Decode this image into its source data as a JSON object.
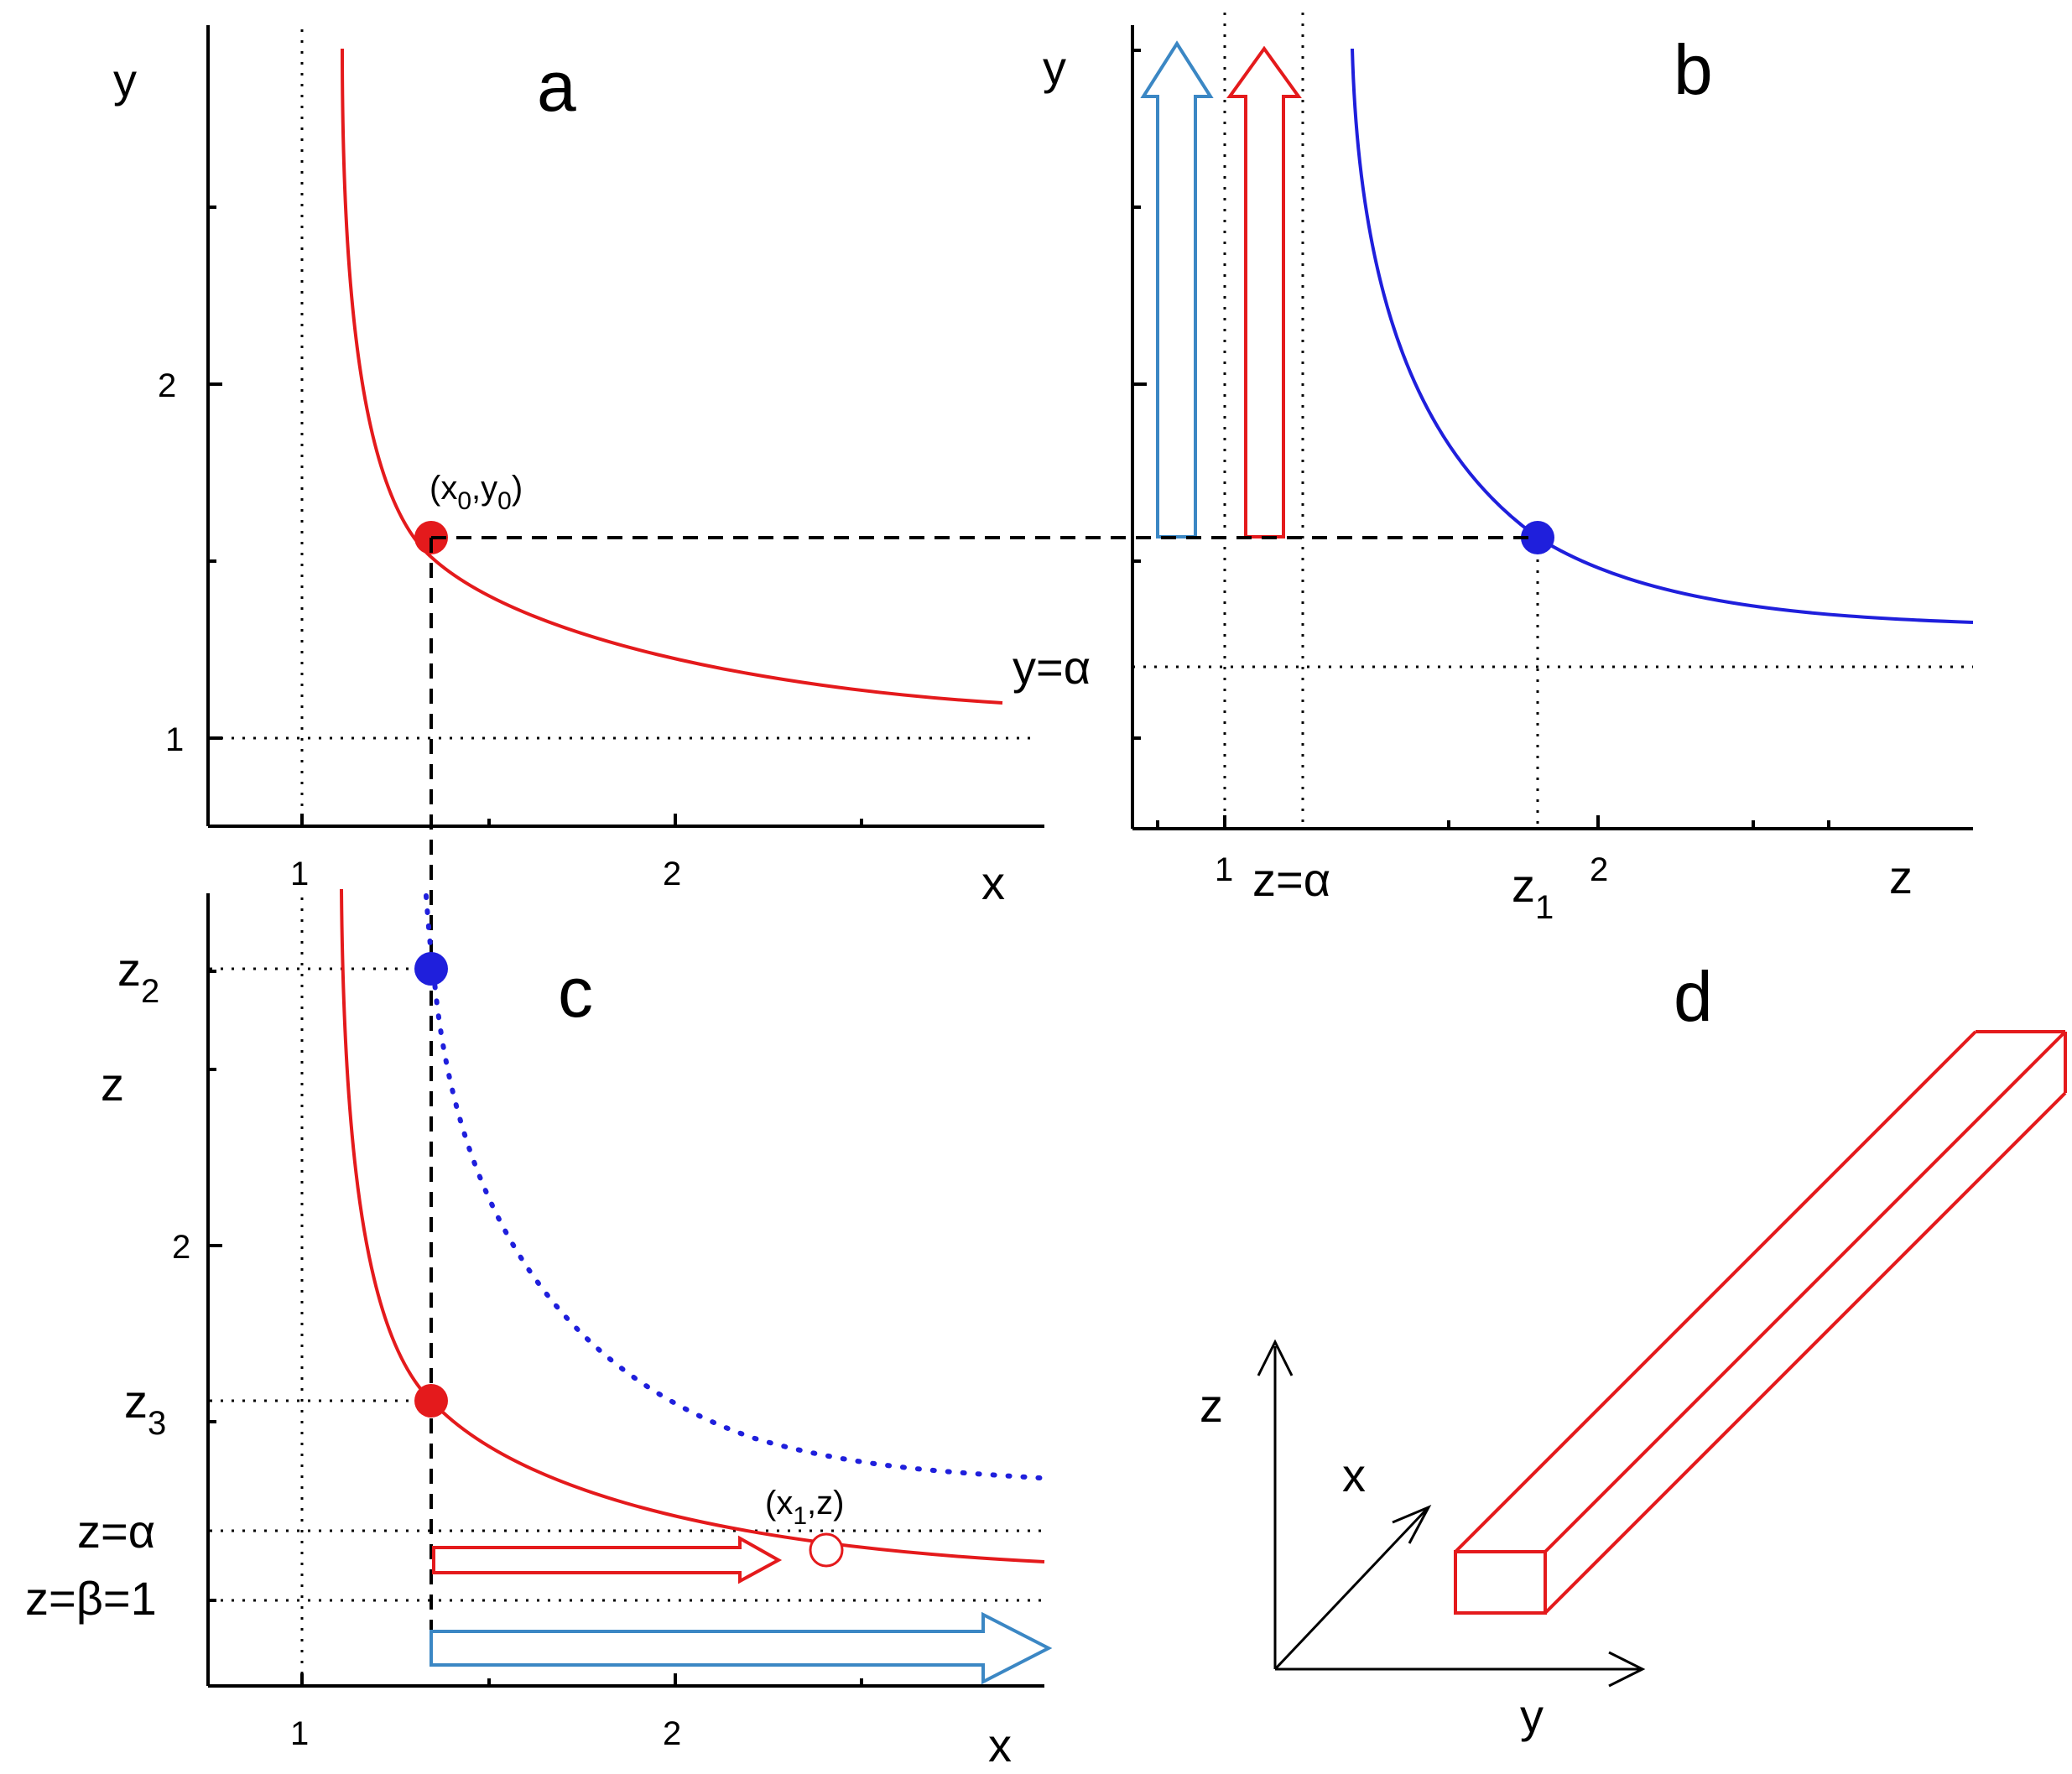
{
  "colors": {
    "red": "#e41a1c",
    "blue": "#1f1fdc",
    "lightblue": "#3b87c4",
    "black": "#000000"
  },
  "panels": {
    "a": {
      "letter": "a",
      "xlabel": "x",
      "ylabel": "y",
      "xticks": [
        "1",
        "2"
      ],
      "yticks": [
        "1",
        "2"
      ],
      "point_label": {
        "open": "(x",
        "sub1": "0",
        "mid": ",y",
        "sub2": "0",
        "close": ")"
      }
    },
    "b": {
      "letter": "b",
      "xlabel": "z",
      "ylabel": "y",
      "xticks": [
        "1",
        "2"
      ],
      "alpha_y_label": "y=α",
      "alpha_z_label": "z=α",
      "z1_label": "z",
      "z1_sub": "1"
    },
    "c": {
      "letter": "c",
      "xlabel": "x",
      "ylabel": "z",
      "xticks": [
        "1",
        "2"
      ],
      "yticks": [
        "2"
      ],
      "z2_label": "z",
      "z2_sub": "2",
      "z3_label": "z",
      "z3_sub": "3",
      "alpha_label": "z=α",
      "beta_label": "z=β=1",
      "point_label": {
        "open": "(x",
        "sub1": "1",
        "mid": ",z)"
      }
    },
    "d": {
      "letter": "d",
      "axis_z": "z",
      "axis_x": "x",
      "axis_y": "y"
    }
  }
}
